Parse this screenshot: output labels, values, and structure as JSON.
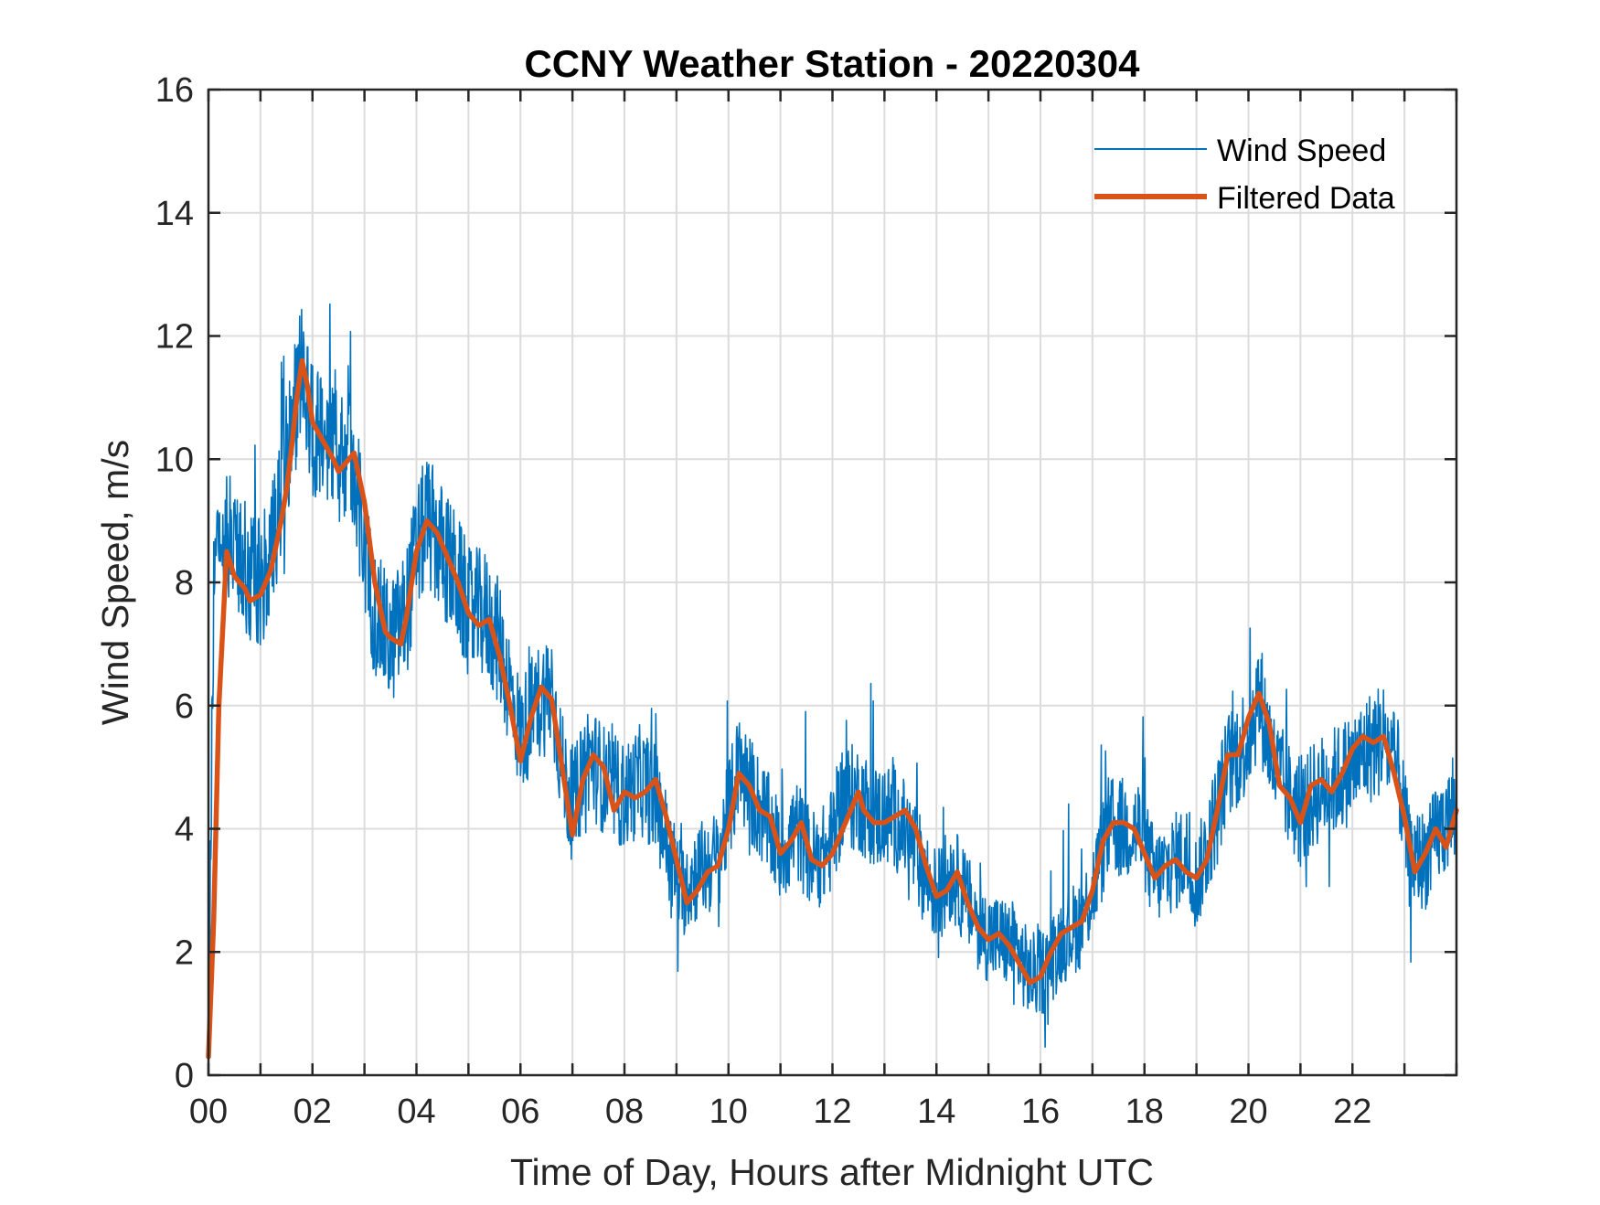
{
  "chart_data": {
    "type": "line",
    "title": "CCNY Weather Station - 20220304",
    "xlabel": "Time of Day, Hours after Midnight UTC",
    "ylabel": "Wind Speed, m/s",
    "xlim": [
      0,
      24
    ],
    "ylim": [
      0,
      16
    ],
    "grid": true,
    "legend_position": "top-right",
    "x_ticks": [
      0,
      2,
      4,
      6,
      8,
      10,
      12,
      14,
      16,
      18,
      20,
      22
    ],
    "x_tick_labels": [
      "00",
      "02",
      "04",
      "06",
      "08",
      "10",
      "12",
      "14",
      "16",
      "18",
      "20",
      "22"
    ],
    "y_ticks": [
      0,
      2,
      4,
      6,
      8,
      10,
      12,
      14,
      16
    ],
    "y_tick_labels": [
      "0",
      "2",
      "4",
      "6",
      "8",
      "10",
      "12",
      "14",
      "16"
    ],
    "series": [
      {
        "name": "Wind Speed",
        "color": "#0072BD",
        "noise_amplitude": 1.1,
        "x": [
          0,
          0.1,
          0.3,
          0.5,
          0.8,
          1.0,
          1.2,
          1.5,
          1.7,
          1.8,
          2.0,
          2.2,
          2.5,
          2.8,
          3.0,
          3.2,
          3.5,
          3.8,
          4.0,
          4.2,
          4.5,
          4.8,
          5.0,
          5.3,
          5.6,
          6.0,
          6.3,
          6.6,
          6.8,
          7.0,
          7.3,
          7.6,
          8.0,
          8.3,
          8.6,
          8.9,
          9.1,
          9.4,
          9.8,
          10.2,
          10.5,
          10.8,
          11.0,
          11.3,
          11.6,
          11.9,
          12.2,
          12.5,
          12.8,
          13.2,
          13.5,
          13.8,
          14.0,
          14.3,
          14.6,
          14.9,
          15.2,
          15.5,
          15.8,
          16.1,
          16.4,
          16.8,
          17.0,
          17.3,
          17.6,
          17.9,
          18.2,
          18.5,
          18.8,
          19.0,
          19.3,
          19.6,
          20.0,
          20.2,
          20.5,
          20.8,
          21.0,
          21.3,
          21.7,
          22.0,
          22.3,
          22.6,
          22.9,
          23.1,
          23.4,
          23.7,
          24.0
        ],
        "y": [
          0.3,
          8.0,
          9.0,
          8.5,
          8.0,
          8.0,
          8.5,
          10.0,
          11.0,
          11.5,
          10.5,
          10.2,
          10.0,
          10.0,
          8.5,
          7.5,
          7.0,
          7.5,
          8.5,
          9.0,
          8.5,
          8.0,
          7.5,
          7.5,
          7.0,
          5.5,
          6.0,
          6.3,
          5.0,
          4.3,
          5.2,
          4.8,
          4.5,
          4.8,
          4.5,
          3.5,
          3.0,
          3.3,
          3.5,
          5.0,
          4.5,
          4.0,
          3.6,
          4.0,
          3.5,
          3.6,
          4.5,
          4.5,
          4.2,
          4.2,
          3.8,
          3.2,
          2.9,
          3.3,
          2.8,
          2.3,
          2.2,
          2.1,
          1.6,
          1.7,
          2.2,
          2.5,
          3.0,
          4.0,
          4.0,
          4.0,
          3.2,
          3.4,
          3.6,
          3.1,
          4.0,
          5.0,
          5.5,
          6.2,
          5.0,
          4.5,
          4.2,
          4.6,
          4.8,
          5.0,
          5.3,
          5.5,
          4.8,
          3.5,
          3.5,
          4.0,
          4.3
        ]
      },
      {
        "name": "Filtered Data",
        "color": "#D95319",
        "x": [
          0,
          0.1,
          0.2,
          0.35,
          0.5,
          0.7,
          0.8,
          1.0,
          1.2,
          1.4,
          1.5,
          1.6,
          1.7,
          1.8,
          1.9,
          2.0,
          2.2,
          2.4,
          2.5,
          2.6,
          2.8,
          3.0,
          3.2,
          3.4,
          3.5,
          3.7,
          3.8,
          4.0,
          4.2,
          4.4,
          4.6,
          4.8,
          5.0,
          5.2,
          5.4,
          5.6,
          5.8,
          6.0,
          6.2,
          6.4,
          6.6,
          6.8,
          7.0,
          7.2,
          7.4,
          7.6,
          7.8,
          8.0,
          8.2,
          8.4,
          8.6,
          8.8,
          9.0,
          9.2,
          9.4,
          9.6,
          9.8,
          10.0,
          10.2,
          10.4,
          10.6,
          10.8,
          11.0,
          11.2,
          11.4,
          11.6,
          11.8,
          12.0,
          12.2,
          12.4,
          12.5,
          12.6,
          12.8,
          13.0,
          13.2,
          13.4,
          13.6,
          13.8,
          14.0,
          14.2,
          14.4,
          14.6,
          14.8,
          15.0,
          15.2,
          15.4,
          15.6,
          15.8,
          16.0,
          16.2,
          16.4,
          16.6,
          16.8,
          17.0,
          17.2,
          17.4,
          17.6,
          17.8,
          18.0,
          18.2,
          18.4,
          18.6,
          18.8,
          19.0,
          19.2,
          19.4,
          19.6,
          19.8,
          20.0,
          20.2,
          20.4,
          20.6,
          20.8,
          21.0,
          21.2,
          21.4,
          21.6,
          21.8,
          22.0,
          22.2,
          22.4,
          22.6,
          22.8,
          23.0,
          23.2,
          23.4,
          23.6,
          23.8,
          24.0
        ],
        "y": [
          0.3,
          2.5,
          6.0,
          8.5,
          8.1,
          7.9,
          7.7,
          7.8,
          8.2,
          9.0,
          9.5,
          10.2,
          11.0,
          11.6,
          11.2,
          10.6,
          10.3,
          10.0,
          9.8,
          9.9,
          10.1,
          9.3,
          8.0,
          7.2,
          7.1,
          7.0,
          7.4,
          8.5,
          9.0,
          8.8,
          8.4,
          8.0,
          7.5,
          7.3,
          7.4,
          6.8,
          6.0,
          5.1,
          5.8,
          6.3,
          6.1,
          5.0,
          3.9,
          4.8,
          5.2,
          5.0,
          4.3,
          4.6,
          4.5,
          4.6,
          4.8,
          4.2,
          3.5,
          2.8,
          3.0,
          3.3,
          3.4,
          4.0,
          4.9,
          4.7,
          4.3,
          4.2,
          3.6,
          3.8,
          4.1,
          3.5,
          3.4,
          3.6,
          4.0,
          4.4,
          4.6,
          4.3,
          4.1,
          4.1,
          4.2,
          4.3,
          4.0,
          3.4,
          2.9,
          3.0,
          3.3,
          2.8,
          2.4,
          2.2,
          2.3,
          2.1,
          1.8,
          1.5,
          1.6,
          2.0,
          2.3,
          2.4,
          2.5,
          3.0,
          3.8,
          4.1,
          4.1,
          4.0,
          3.6,
          3.2,
          3.4,
          3.5,
          3.3,
          3.2,
          3.5,
          4.3,
          5.2,
          5.2,
          5.8,
          6.2,
          5.7,
          4.7,
          4.5,
          4.1,
          4.7,
          4.8,
          4.6,
          4.9,
          5.3,
          5.5,
          5.4,
          5.5,
          4.9,
          4.2,
          3.3,
          3.6,
          4.0,
          3.7,
          4.3
        ]
      }
    ]
  }
}
